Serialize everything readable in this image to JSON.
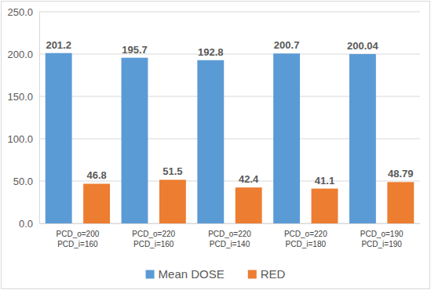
{
  "chart_data": {
    "type": "bar",
    "categories": [
      "PCD_o=200\nPCD_i=160",
      "PCD_o=220\nPCD_i=160",
      "PCD_o=220\nPCD_i=140",
      "PCD_o=220\nPCD_i=180",
      "PCD_o=190\nPCD_i=190"
    ],
    "series": [
      {
        "name": "Mean DOSE",
        "color": "#5b9bd5",
        "values": [
          201.2,
          195.7,
          192.8,
          200.7,
          200.04
        ]
      },
      {
        "name": "RED",
        "color": "#ed7d31",
        "values": [
          46.8,
          51.5,
          42.4,
          41.1,
          48.79
        ]
      }
    ],
    "ylim": [
      0,
      250
    ],
    "yticks": [
      {
        "value": 0,
        "label": "0.0"
      },
      {
        "value": 50,
        "label": "50.0"
      },
      {
        "value": 100,
        "label": "100.0"
      },
      {
        "value": 150,
        "label": "150.0"
      },
      {
        "value": 200,
        "label": "200.0"
      },
      {
        "value": 250,
        "label": "250.0"
      }
    ],
    "grid": true,
    "data_labels": true,
    "legend": "bottom"
  }
}
